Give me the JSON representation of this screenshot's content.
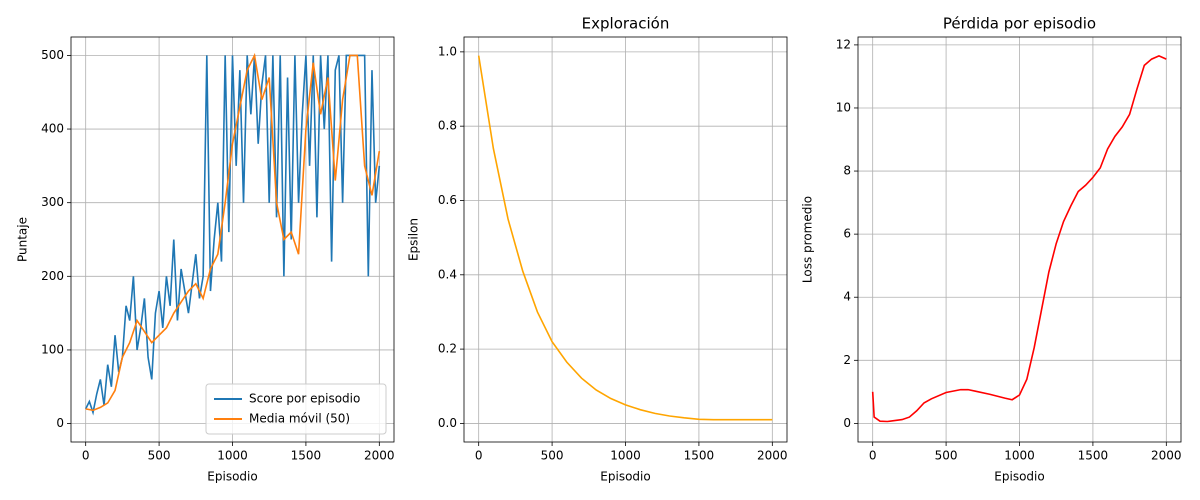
{
  "chart_data": [
    {
      "type": "line",
      "xlabel": "Episodio",
      "ylabel": "Puntaje",
      "grid": true,
      "legend": "lower right",
      "xlim": [
        -100,
        2100
      ],
      "xticks": [
        0,
        500,
        1000,
        1500,
        2000
      ],
      "ylim": [
        -25,
        525
      ],
      "yticks": [
        0,
        100,
        200,
        300,
        400,
        500
      ],
      "series": [
        {
          "name": "Score por episodio",
          "color": "#1f77b4",
          "x": [
            0,
            25,
            50,
            75,
            100,
            125,
            150,
            175,
            200,
            225,
            250,
            275,
            300,
            325,
            350,
            375,
            400,
            425,
            450,
            475,
            500,
            525,
            550,
            575,
            600,
            625,
            650,
            675,
            700,
            725,
            750,
            775,
            800,
            825,
            850,
            875,
            900,
            925,
            950,
            975,
            1000,
            1025,
            1050,
            1075,
            1100,
            1125,
            1150,
            1175,
            1200,
            1225,
            1250,
            1275,
            1300,
            1325,
            1350,
            1375,
            1400,
            1425,
            1450,
            1475,
            1500,
            1525,
            1550,
            1575,
            1600,
            1625,
            1650,
            1675,
            1700,
            1725,
            1750,
            1775,
            1800,
            1825,
            1850,
            1875,
            1900,
            1925,
            1950,
            1975,
            2000
          ],
          "values": [
            20,
            30,
            15,
            40,
            60,
            25,
            80,
            50,
            120,
            70,
            90,
            160,
            140,
            200,
            100,
            130,
            170,
            90,
            60,
            150,
            180,
            130,
            200,
            160,
            250,
            140,
            210,
            180,
            150,
            190,
            230,
            170,
            200,
            500,
            180,
            250,
            300,
            220,
            500,
            260,
            500,
            350,
            480,
            300,
            500,
            420,
            500,
            380,
            460,
            500,
            300,
            500,
            280,
            500,
            200,
            470,
            250,
            500,
            300,
            420,
            500,
            350,
            500,
            280,
            500,
            400,
            500,
            220,
            480,
            500,
            300,
            500,
            500,
            500,
            500,
            500,
            500,
            200,
            480,
            300,
            350
          ]
        },
        {
          "name": "Media móvil (50)",
          "color": "#ff7f0e",
          "x": [
            0,
            50,
            100,
            150,
            200,
            250,
            300,
            350,
            400,
            450,
            500,
            550,
            600,
            650,
            700,
            750,
            800,
            850,
            900,
            950,
            1000,
            1050,
            1100,
            1150,
            1200,
            1250,
            1300,
            1350,
            1400,
            1450,
            1500,
            1550,
            1600,
            1650,
            1700,
            1750,
            1800,
            1850,
            1900,
            1950,
            2000
          ],
          "values": [
            20,
            18,
            22,
            28,
            45,
            90,
            110,
            140,
            125,
            110,
            120,
            130,
            150,
            165,
            180,
            190,
            170,
            210,
            230,
            300,
            380,
            430,
            480,
            500,
            440,
            470,
            300,
            250,
            260,
            230,
            400,
            490,
            420,
            470,
            330,
            440,
            500,
            500,
            350,
            310,
            370
          ]
        }
      ]
    },
    {
      "type": "line",
      "title": "Exploración",
      "xlabel": "Episodio",
      "ylabel": "Epsilon",
      "grid": true,
      "xlim": [
        -100,
        2100
      ],
      "xticks": [
        0,
        500,
        1000,
        1500,
        2000
      ],
      "ylim": [
        -0.05,
        1.04
      ],
      "yticks": [
        {
          "value": 0,
          "label": "0.0"
        },
        0.2,
        0.4,
        0.6,
        0.8,
        {
          "value": 1,
          "label": "1.0"
        }
      ],
      "series": [
        {
          "color": "#ffa500",
          "x": [
            0,
            100,
            200,
            300,
            400,
            500,
            600,
            700,
            800,
            900,
            1000,
            1100,
            1200,
            1300,
            1400,
            1500,
            1600,
            1700,
            1800,
            1900,
            2000
          ],
          "values": [
            0.99,
            0.74,
            0.55,
            0.41,
            0.3,
            0.22,
            0.165,
            0.122,
            0.09,
            0.067,
            0.05,
            0.037,
            0.027,
            0.02,
            0.015,
            0.011,
            0.01,
            0.01,
            0.01,
            0.01,
            0.01
          ]
        }
      ]
    },
    {
      "type": "line",
      "title": "Pérdida por episodio",
      "xlabel": "Episodio",
      "ylabel": "Loss promedio",
      "grid": true,
      "xlim": [
        -100,
        2100
      ],
      "xticks": [
        0,
        500,
        1000,
        1500,
        2000
      ],
      "ylim": [
        -0.59,
        12.25
      ],
      "yticks": [
        0,
        2,
        4,
        6,
        8,
        10,
        12
      ],
      "series": [
        {
          "color": "#ff0000",
          "x": [
            0,
            10,
            50,
            100,
            200,
            250,
            300,
            350,
            400,
            500,
            600,
            650,
            700,
            800,
            900,
            950,
            1000,
            1050,
            1100,
            1150,
            1200,
            1250,
            1300,
            1350,
            1400,
            1450,
            1500,
            1550,
            1600,
            1650,
            1700,
            1750,
            1800,
            1850,
            1900,
            1950,
            2000
          ],
          "values": [
            1.0,
            0.2,
            0.07,
            0.06,
            0.12,
            0.2,
            0.4,
            0.65,
            0.78,
            0.98,
            1.07,
            1.07,
            1.02,
            0.92,
            0.8,
            0.75,
            0.9,
            1.4,
            2.4,
            3.6,
            4.8,
            5.7,
            6.4,
            6.9,
            7.35,
            7.55,
            7.8,
            8.1,
            8.7,
            9.1,
            9.4,
            9.8,
            10.6,
            11.35,
            11.55,
            11.65,
            11.55
          ]
        }
      ]
    }
  ]
}
